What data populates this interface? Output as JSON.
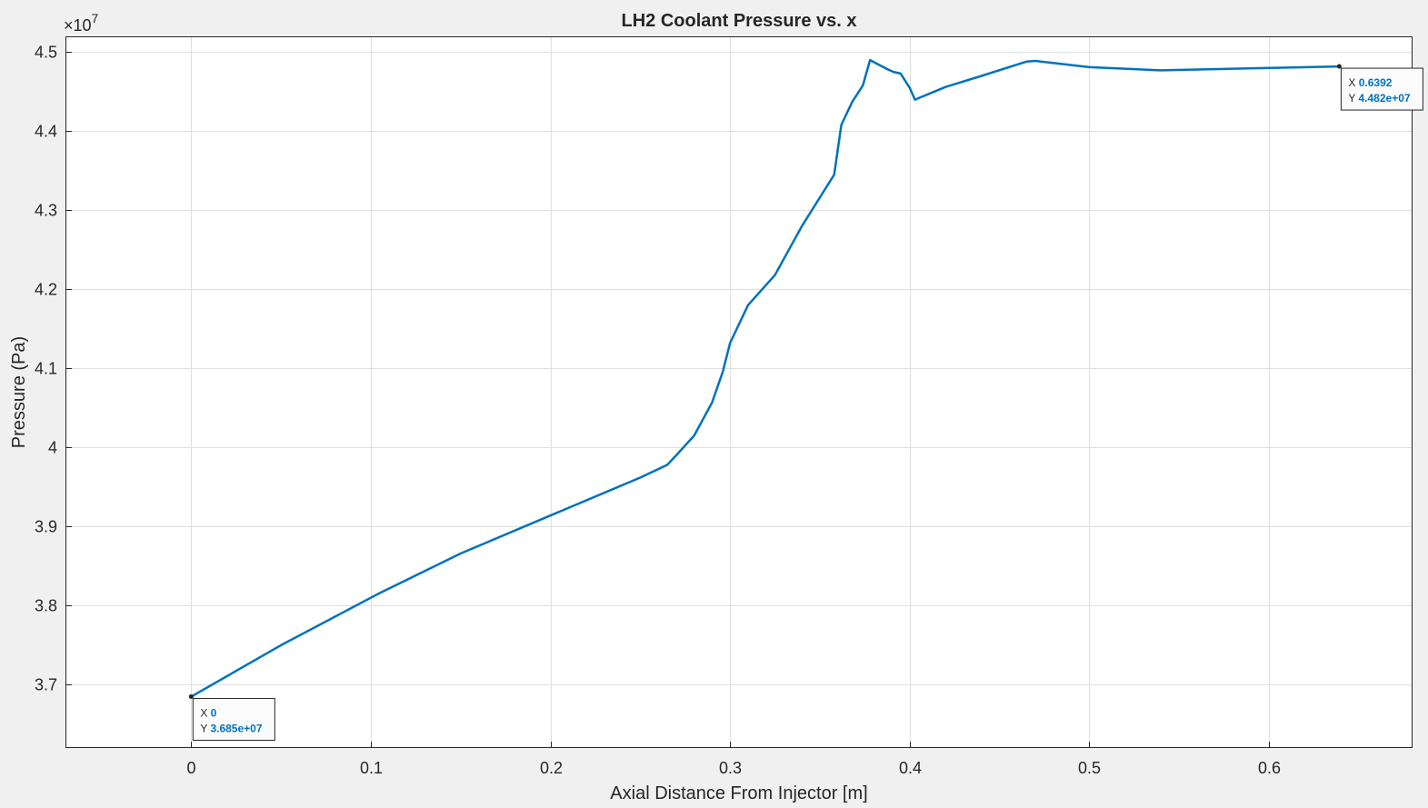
{
  "chart_data": {
    "type": "line",
    "title": "LH2 Coolant Pressure vs. x",
    "xlabel": "Axial Distance From Injector [m]",
    "ylabel": "Pressure (Pa)",
    "y_exponent_prefix": "×10",
    "y_exponent": "7",
    "xlim": [
      -0.07,
      0.68
    ],
    "ylim": [
      3.62,
      4.52
    ],
    "x_ticks": [
      0,
      0.1,
      0.2,
      0.3,
      0.4,
      0.5,
      0.6
    ],
    "x_tick_labels": [
      "0",
      "0.1",
      "0.2",
      "0.3",
      "0.4",
      "0.5",
      "0.6"
    ],
    "y_ticks": [
      3.7,
      3.8,
      3.9,
      4.0,
      4.1,
      4.2,
      4.3,
      4.4,
      4.5
    ],
    "y_tick_labels": [
      "3.7",
      "3.8",
      "3.9",
      "4",
      "4.1",
      "4.2",
      "4.3",
      "4.4",
      "4.5"
    ],
    "grid": true,
    "line_color": "#0072bd",
    "series": [
      {
        "x": [
          0,
          0.05,
          0.1,
          0.105,
          0.15,
          0.2,
          0.25,
          0.265,
          0.27,
          0.28,
          0.29,
          0.296,
          0.3,
          0.31,
          0.325,
          0.34,
          0.358,
          0.362,
          0.368,
          0.374,
          0.378,
          0.382,
          0.388,
          0.391,
          0.395,
          0.4,
          0.403,
          0.42,
          0.44,
          0.465,
          0.47,
          0.5,
          0.54,
          0.6,
          0.6392
        ],
        "y": [
          3.685,
          3.75,
          3.81,
          3.816,
          3.866,
          3.914,
          3.962,
          3.978,
          3.99,
          4.015,
          4.057,
          4.096,
          4.132,
          4.18,
          4.218,
          4.28,
          4.345,
          4.408,
          4.437,
          4.458,
          4.49,
          4.485,
          4.478,
          4.475,
          4.473,
          4.455,
          4.44,
          4.456,
          4.47,
          4.488,
          4.489,
          4.481,
          4.477,
          4.48,
          4.482
        ]
      }
    ],
    "datatips": [
      {
        "x_key": "X",
        "x_value": "0",
        "y_key": "Y",
        "y_value": "3.685e+07",
        "x": 0,
        "y": 3.685,
        "side": "below-right"
      },
      {
        "x_key": "X",
        "x_value": "0.6392",
        "y_key": "Y",
        "y_value": "4.482e+07",
        "x": 0.6392,
        "y": 4.482,
        "side": "below-right"
      }
    ]
  }
}
